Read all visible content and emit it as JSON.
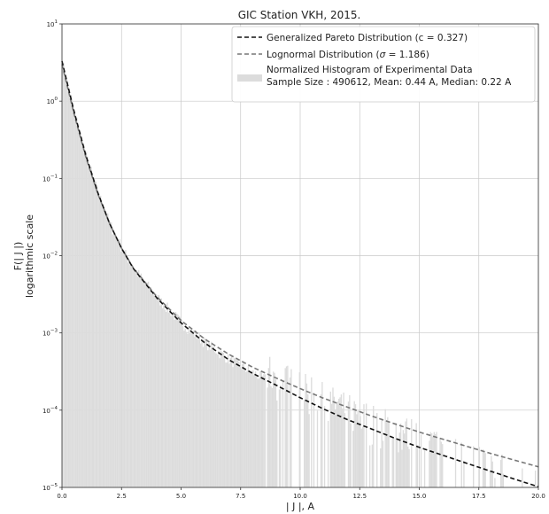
{
  "chart_data": {
    "type": "line",
    "title": "GIC Station VKH, 2015.",
    "xlabel": "| J |, A",
    "ylabel_line1": "F(| J |)",
    "ylabel_line2": "logarithmic scale",
    "xlim": [
      0.0,
      20.0
    ],
    "ylim": [
      1e-05,
      10
    ],
    "yscale": "log",
    "grid": true,
    "legend_placement": "top-right",
    "x_ticks": [
      "0.0",
      "2.5",
      "5.0",
      "7.5",
      "10.0",
      "12.5",
      "15.0",
      "17.5",
      "20.0"
    ],
    "y_ticks": [
      {
        "base": "10",
        "exp": "1",
        "value": 10
      },
      {
        "base": "10",
        "exp": "0",
        "value": 1
      },
      {
        "base": "10",
        "exp": "−1",
        "value": 0.1
      },
      {
        "base": "10",
        "exp": "−2",
        "value": 0.01
      },
      {
        "base": "10",
        "exp": "−3",
        "value": 0.001
      },
      {
        "base": "10",
        "exp": "−4",
        "value": 0.0001
      },
      {
        "base": "10",
        "exp": "−5",
        "value": 1e-05
      }
    ],
    "legend": {
      "gpd_label": "Generalized Pareto Distribution (c = 0.327)",
      "lognormal_prefix": "Lognormal Distribution (",
      "lognormal_sigma": "σ",
      "lognormal_suffix": " = 1.186)",
      "hist_label_line1": "Normalized Histogram of Experimental Data",
      "hist_label_line2": "Sample Size : 490612, Mean: 0.44  A, Median: 0.22 A"
    },
    "series": [
      {
        "name": "Generalized Pareto Distribution (c = 0.327)",
        "style": "dashed",
        "color": "#111111",
        "x": [
          0.0,
          0.5,
          1.0,
          1.5,
          2.0,
          2.5,
          3.0,
          4.0,
          5.0,
          6.0,
          7.0,
          8.0,
          9.0,
          10.0,
          11.0,
          12.0,
          13.0,
          14.0,
          15.0,
          16.0,
          17.0,
          18.0,
          19.0,
          20.0
        ],
        "y": [
          3.3,
          0.75,
          0.2,
          0.066,
          0.026,
          0.0125,
          0.0068,
          0.0028,
          0.00135,
          0.00074,
          0.00045,
          0.0003,
          0.00021,
          0.000145,
          0.000103,
          7.5e-05,
          5.7e-05,
          4.3e-05,
          3.3e-05,
          2.6e-05,
          2.05e-05,
          1.62e-05,
          1.28e-05,
          1.02e-05
        ]
      },
      {
        "name": "Lognormal Distribution (σ = 1.186)",
        "style": "dashed",
        "color": "#777777",
        "x": [
          0.0,
          0.5,
          1.0,
          1.5,
          2.0,
          2.5,
          3.0,
          4.0,
          5.0,
          6.0,
          7.0,
          8.0,
          9.0,
          10.0,
          11.0,
          12.0,
          13.0,
          14.0,
          15.0,
          16.0,
          17.0,
          18.0,
          19.0,
          20.0
        ],
        "y": [
          3.0,
          0.7,
          0.19,
          0.064,
          0.026,
          0.0125,
          0.0069,
          0.0029,
          0.00145,
          0.00083,
          0.00053,
          0.00036,
          0.00026,
          0.00019,
          0.000142,
          0.000109,
          8.4e-05,
          6.6e-05,
          5.2e-05,
          4.2e-05,
          3.4e-05,
          2.75e-05,
          2.25e-05,
          1.85e-05
        ]
      }
    ],
    "histogram": {
      "name": "Normalized Histogram of Experimental Data",
      "color": "#dcdcdc",
      "edge_color": "#e8e8e8",
      "bin_width": 0.05,
      "noise_seed": 7,
      "sparse_from": 8.5,
      "sparse_until": 16.0
    }
  }
}
